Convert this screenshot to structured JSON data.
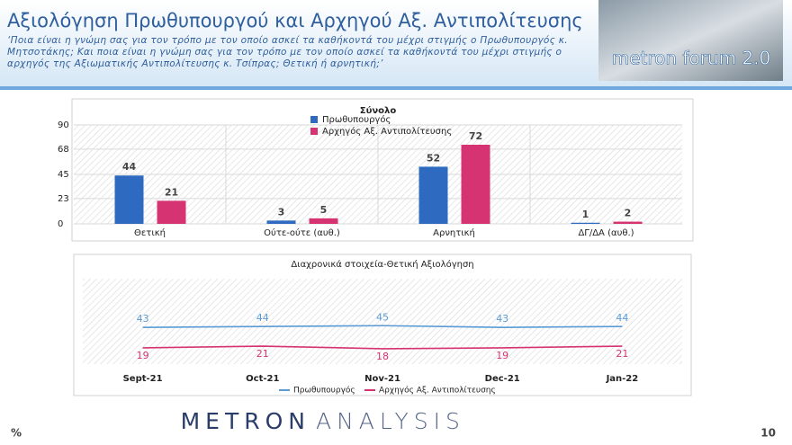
{
  "header": {
    "title": "Αξιολόγηση Πρωθυπουργού και Αρχηγού Αξ. Αντιπολίτευσης",
    "subtitle": "‘Ποια είναι η γνώμη σας για τον τρόπο με τον οποίο ασκεί τα καθήκοντά του μέχρι στιγμής ο Πρωθυπουργός κ. Μητσοτάκης; Και ποια είναι η γνώμη σας για τον τρόπο με τον οποίο ασκεί τα καθήκοντά του μέχρι στιγμής ο αρχηγός της Αξιωματικής Αντιπολίτευσης κ. Τσίπρας; Θετική ή αρνητική;’",
    "logo": "metron forum 2.0"
  },
  "chart_data": [
    {
      "type": "bar",
      "title": "Σύνολο",
      "categories": [
        "Θετική",
        "Ούτε-ούτε (αυθ.)",
        "Αρνητική",
        "ΔΓ/ΔΑ (αυθ.)"
      ],
      "series": [
        {
          "name": "Πρωθυπουργός",
          "color": "#2e6bc0",
          "values": [
            44,
            3,
            52,
            1
          ]
        },
        {
          "name": "Αρχηγός Αξ. Αντιπολίτευσης",
          "color": "#d63372",
          "values": [
            21,
            5,
            72,
            2
          ]
        }
      ],
      "ylim": [
        0,
        90
      ],
      "yticks": [
        0,
        23,
        45,
        68,
        90
      ]
    },
    {
      "type": "line",
      "title": "Διαχρονικά στοιχεία-Θετική Αξιολόγηση",
      "categories": [
        "Sept-21",
        "Oct-21",
        "Nov-21",
        "Dec-21",
        "Jan-22"
      ],
      "series": [
        {
          "name": "Πρωθυπουργός",
          "color": "#5b9bd5",
          "values": [
            43,
            44,
            45,
            43,
            44
          ]
        },
        {
          "name": "Αρχηγός Αξ. Αντιπολίτευσης",
          "color": "#d63372",
          "values": [
            19,
            21,
            18,
            19,
            21
          ]
        }
      ],
      "ylim": [
        0,
        100
      ]
    }
  ],
  "footer": {
    "unit": "%",
    "brand": [
      "METRON",
      "ANALYSIS"
    ],
    "page": "10"
  }
}
